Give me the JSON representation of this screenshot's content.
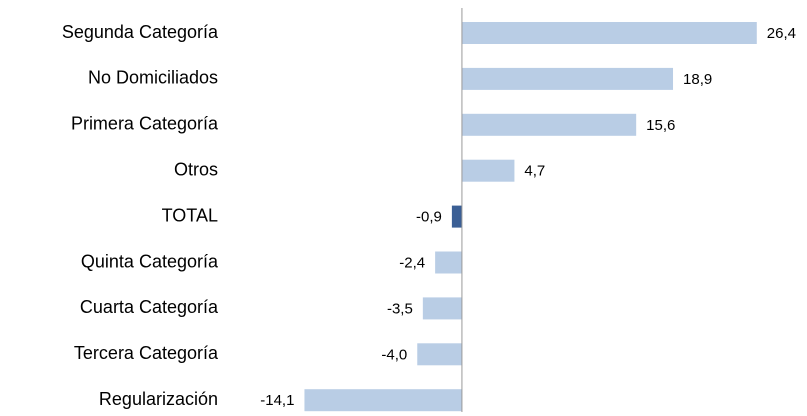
{
  "chart_data": {
    "type": "hbar",
    "categories": [
      "Segunda Categoría",
      "No Domiciliados",
      "Primera Categoría",
      "Otros",
      "TOTAL",
      "Quinta Categoría",
      "Cuarta Categoría",
      "Tercera Categoría",
      "Regularización"
    ],
    "values": [
      26.4,
      18.9,
      15.6,
      4.7,
      -0.9,
      -2.4,
      -3.5,
      -4.0,
      -14.1
    ],
    "value_labels": [
      "26,4",
      "18,9",
      "15,6",
      "4,7",
      "-0,9",
      "-2,4",
      "-3,5",
      "-4,0",
      "-14,1"
    ],
    "colors": [
      "#b9cde5",
      "#b9cde5",
      "#b9cde5",
      "#b9cde5",
      "#3b5f95",
      "#b9cde5",
      "#b9cde5",
      "#b9cde5",
      "#b9cde5"
    ],
    "xlim": [
      -15,
      30
    ]
  }
}
